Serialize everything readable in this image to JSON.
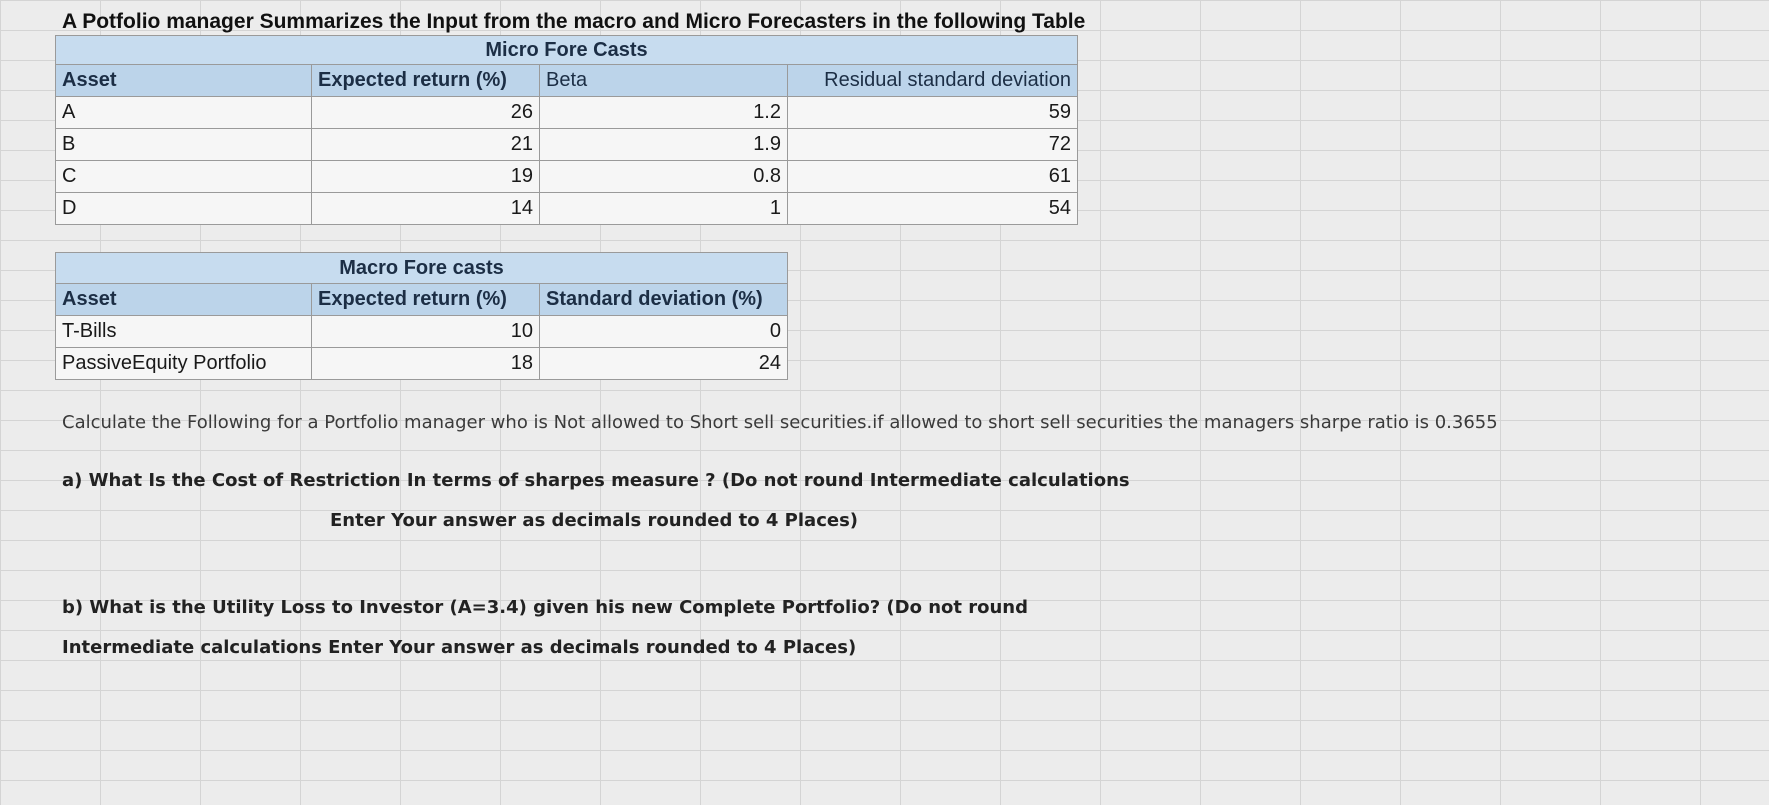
{
  "title": "A Potfolio manager Summarizes the Input from the macro and Micro Forecasters in the following Table",
  "micro": {
    "heading": "Micro Fore Casts",
    "columns": [
      "Asset",
      "Expected return (%)",
      "Beta",
      "Residual standard deviation"
    ],
    "rows": [
      {
        "asset": "A",
        "expected_return": "26",
        "beta": "1.2",
        "residual_sd": "59"
      },
      {
        "asset": "B",
        "expected_return": "21",
        "beta": "1.9",
        "residual_sd": "72"
      },
      {
        "asset": "C",
        "expected_return": "19",
        "beta": "0.8",
        "residual_sd": "61"
      },
      {
        "asset": "D",
        "expected_return": "14",
        "beta": "1",
        "residual_sd": "54"
      }
    ]
  },
  "macro": {
    "heading": "Macro Fore casts",
    "columns": [
      "Asset",
      "Expected return (%)",
      "Standard deviation (%)"
    ],
    "rows": [
      {
        "asset": "T-Bills",
        "expected_return": "10",
        "sd": "0"
      },
      {
        "asset": "PassiveEquity Portfolio",
        "expected_return": "18",
        "sd": "24"
      }
    ]
  },
  "intro": "Calculate the Following for a Portfolio manager who is Not allowed to Short sell securities.if allowed to short sell securities the managers sharpe ratio is 0.3655",
  "question_a": {
    "line1": "a) What Is the Cost of Restriction In terms of sharpes measure ? (Do not round Intermediate calculations",
    "line2": "Enter Your answer as decimals rounded to 4 Places)"
  },
  "question_b": {
    "line1": "b) What is the Utility Loss to Investor (A=3.4) given his new Complete Portfolio? (Do not round",
    "line2": "Intermediate calculations Enter Your answer as decimals rounded to 4 Places)"
  }
}
